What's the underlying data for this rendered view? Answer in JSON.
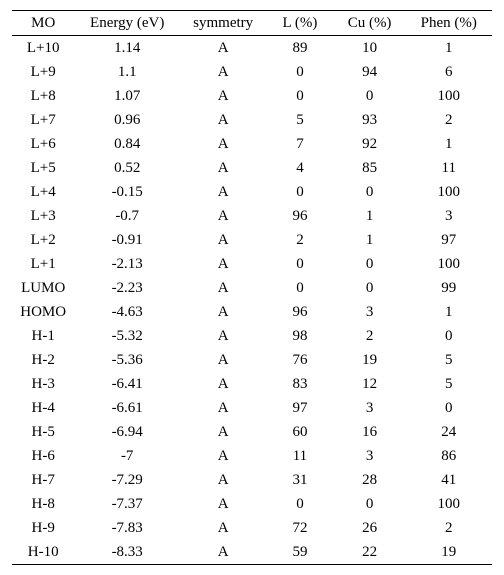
{
  "table": {
    "columns": [
      "MO",
      "Energy (eV)",
      "symmetry",
      "L (%)",
      "Cu (%)",
      "Phen (%)"
    ],
    "rows": [
      [
        "L+10",
        "1.14",
        "A",
        "89",
        "10",
        "1"
      ],
      [
        "L+9",
        "1.1",
        "A",
        "0",
        "94",
        "6"
      ],
      [
        "L+8",
        "1.07",
        "A",
        "0",
        "0",
        "100"
      ],
      [
        "L+7",
        "0.96",
        "A",
        "5",
        "93",
        "2"
      ],
      [
        "L+6",
        "0.84",
        "A",
        "7",
        "92",
        "1"
      ],
      [
        "L+5",
        "0.52",
        "A",
        "4",
        "85",
        "11"
      ],
      [
        "L+4",
        "-0.15",
        "A",
        "0",
        "0",
        "100"
      ],
      [
        "L+3",
        "-0.7",
        "A",
        "96",
        "1",
        "3"
      ],
      [
        "L+2",
        "-0.91",
        "A",
        "2",
        "1",
        "97"
      ],
      [
        "L+1",
        "-2.13",
        "A",
        "0",
        "0",
        "100"
      ],
      [
        "LUMO",
        "-2.23",
        "A",
        "0",
        "0",
        "99"
      ],
      [
        "HOMO",
        "-4.63",
        "A",
        "96",
        "3",
        "1"
      ],
      [
        "H-1",
        "-5.32",
        "A",
        "98",
        "2",
        "0"
      ],
      [
        "H-2",
        "-5.36",
        "A",
        "76",
        "19",
        "5"
      ],
      [
        "H-3",
        "-6.41",
        "A",
        "83",
        "12",
        "5"
      ],
      [
        "H-4",
        "-6.61",
        "A",
        "97",
        "3",
        "0"
      ],
      [
        "H-5",
        "-6.94",
        "A",
        "60",
        "16",
        "24"
      ],
      [
        "H-6",
        "-7",
        "A",
        "11",
        "3",
        "86"
      ],
      [
        "H-7",
        "-7.29",
        "A",
        "31",
        "28",
        "41"
      ],
      [
        "H-8",
        "-7.37",
        "A",
        "0",
        "0",
        "100"
      ],
      [
        "H-9",
        "-7.83",
        "A",
        "72",
        "26",
        "2"
      ],
      [
        "H-10",
        "-8.33",
        "A",
        "59",
        "22",
        "19"
      ]
    ]
  }
}
